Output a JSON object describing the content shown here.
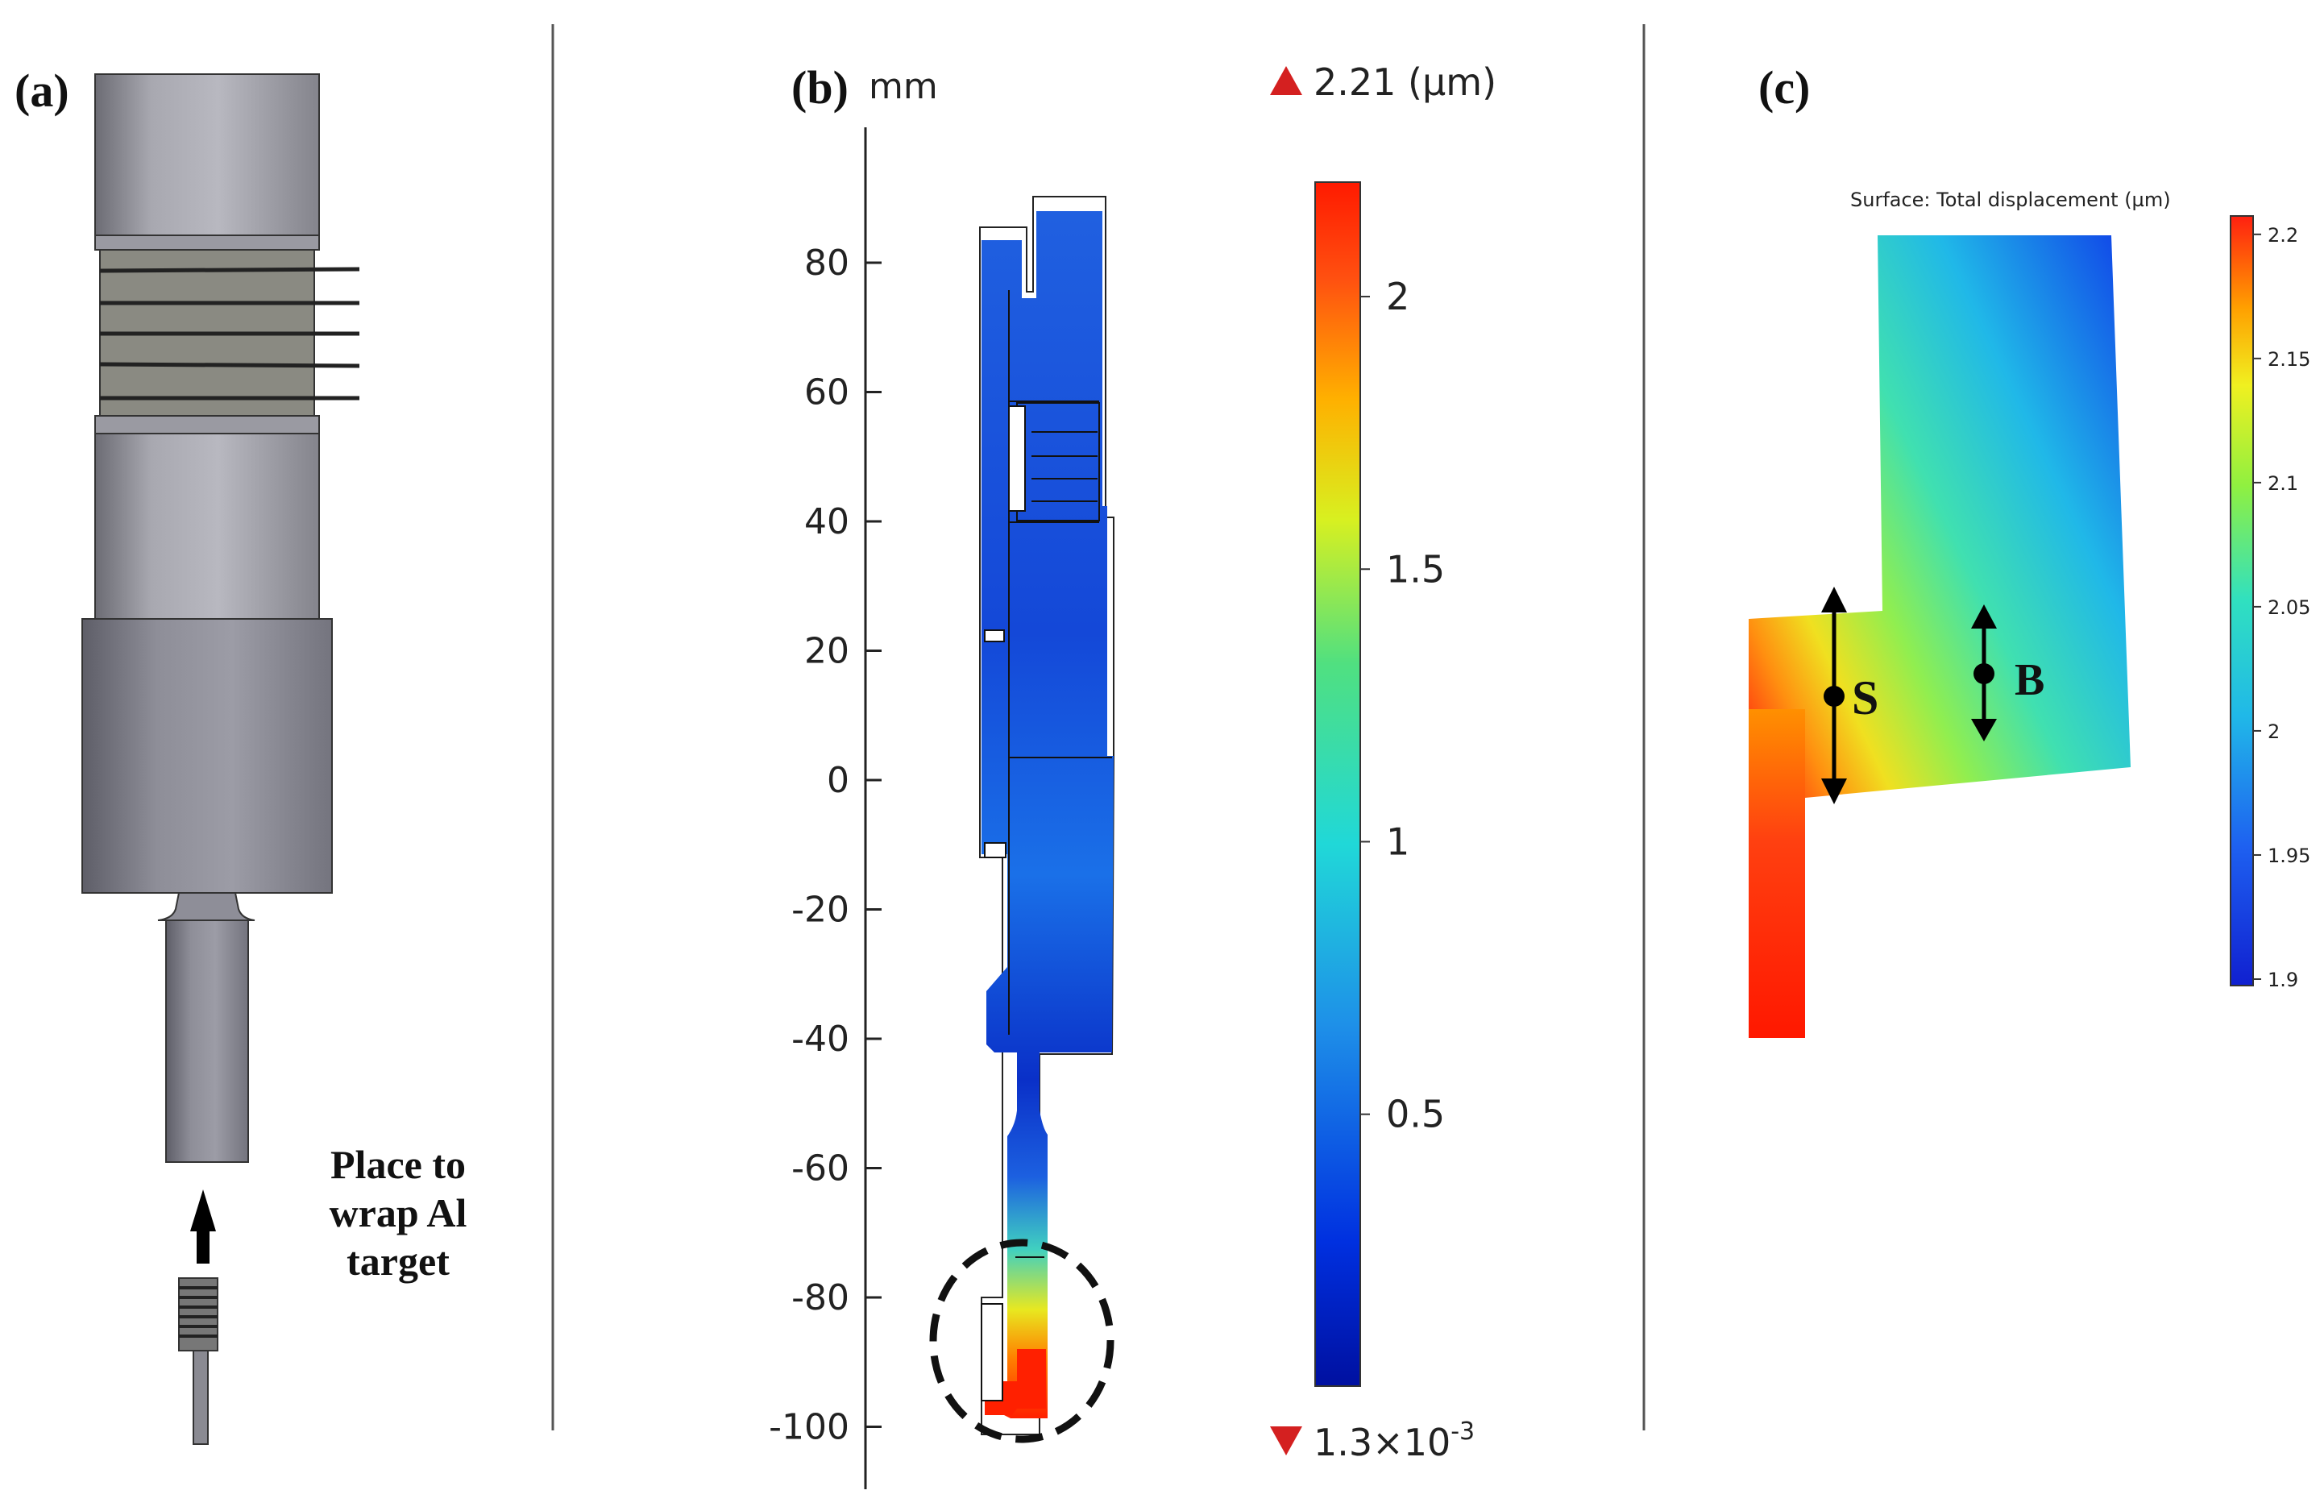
{
  "panels": {
    "a": {
      "label": "(a)",
      "annotation_lines": [
        "Place to",
        "wrap Al",
        "target"
      ]
    },
    "b": {
      "label": "(b)",
      "axis_unit": "mm",
      "y_ticks": [
        "80",
        "60",
        "40",
        "20",
        "0",
        "-20",
        "-40",
        "-60",
        "-80",
        "-100"
      ],
      "y_tick_values": [
        80,
        60,
        40,
        20,
        0,
        -20,
        -40,
        -60,
        -80,
        -100
      ],
      "colorbar": {
        "max_label": "2.21 (µm)",
        "min_label_base": "1.3×10",
        "min_label_exp": "-3",
        "ticks": [
          "2",
          "1.5",
          "1",
          "0.5"
        ],
        "tick_values": [
          2,
          1.5,
          1,
          0.5
        ],
        "range": [
          0.0013,
          2.21
        ]
      }
    },
    "c": {
      "label": "(c)",
      "title": "Surface: Total displacement (µm)",
      "colorbar": {
        "ticks": [
          "2.2",
          "2.15",
          "2.1",
          "2.05",
          "2",
          "1.95",
          "1.9"
        ],
        "tick_values": [
          2.2,
          2.15,
          2.1,
          2.05,
          2.0,
          1.95,
          1.9
        ],
        "range": [
          1.9,
          2.21
        ]
      },
      "markers": {
        "s": "S",
        "b": "B"
      }
    }
  },
  "colors": {
    "jet_red": "#ff2000",
    "jet_yellow": "#f2f000",
    "jet_cyan": "#20d8d8",
    "jet_blue": "#1040e0",
    "steel_gray": "#8e8e98",
    "divider": "#555555"
  }
}
